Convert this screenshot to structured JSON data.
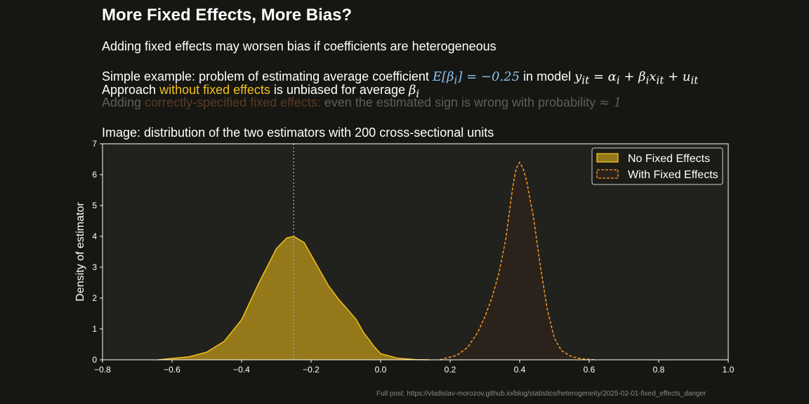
{
  "title": "More Fixed Effects, More Bias?",
  "subtitle": "Adding fixed effects may worsen bias if coefficients are heterogeneous",
  "line_example": {
    "prefix": "Simple example: problem of estimating average coefficient",
    "expected": "E[β",
    "expected_sub": "i",
    "expected_rest": "] = −0.25",
    "middle": "in model",
    "model": "y",
    "model_sub1": "it",
    "model_eq": " = α",
    "model_sub2": "i",
    "model_plus1": " + β",
    "model_sub3": "i",
    "model_x": "x",
    "model_sub4": "it",
    "model_plus2": " + u",
    "model_sub5": "it"
  },
  "line_no_fe": {
    "prefix": "Approach",
    "highlight": "without fixed effects",
    "suffix": "is unbiased for average",
    "beta": "β",
    "beta_sub": "i"
  },
  "line_fe": {
    "prefix": "Adding",
    "highlight": "correctly-specified fixed effects:",
    "suffix": "even the estimated sign is wrong with probability",
    "approx": "≈ 1"
  },
  "line_image": "Image: distribution of the two estimators with 200 cross-sectional units",
  "footer": "Full post: https://vladislav-morozov.github.io/blog/statistics/heterogeneity/2025-02-01-fixed_effects_danger",
  "chart_data": {
    "type": "area",
    "title": "",
    "xlabel": "",
    "ylabel": "Density of estimator",
    "xlim": [
      -0.8,
      1.0
    ],
    "ylim": [
      0,
      7
    ],
    "xticks": [
      -0.8,
      -0.6,
      -0.4,
      -0.2,
      0.0,
      0.2,
      0.4,
      0.6,
      0.8,
      1.0
    ],
    "xtick_labels": [
      "−0.8",
      "−0.6",
      "−0.4",
      "−0.2",
      "0.0",
      "0.2",
      "0.4",
      "0.6",
      "0.8",
      "1.0"
    ],
    "yticks": [
      0,
      1,
      2,
      3,
      4,
      5,
      6,
      7
    ],
    "ytick_labels": [
      "0",
      "1",
      "2",
      "3",
      "4",
      "5",
      "6",
      "7"
    ],
    "reference_line": {
      "x": -0.25,
      "style": "dotted",
      "color": "#7aa6c2"
    },
    "legend_position": "top-right",
    "grid": false,
    "series": [
      {
        "name": "No Fixed Effects",
        "line_style": "solid",
        "line_color": "#f2c21a",
        "fill_color": "#95781a",
        "x": [
          -0.64,
          -0.55,
          -0.5,
          -0.45,
          -0.4,
          -0.35,
          -0.3,
          -0.27,
          -0.25,
          -0.22,
          -0.2,
          -0.17,
          -0.15,
          -0.12,
          -0.1,
          -0.07,
          -0.05,
          -0.02,
          0.0,
          0.05,
          0.1,
          0.14
        ],
        "y": [
          0.0,
          0.1,
          0.25,
          0.6,
          1.3,
          2.5,
          3.6,
          3.95,
          4.0,
          3.8,
          3.4,
          2.8,
          2.4,
          1.95,
          1.7,
          1.3,
          0.9,
          0.45,
          0.2,
          0.05,
          0.01,
          0.0
        ]
      },
      {
        "name": "With Fixed Effects",
        "line_style": "dashed",
        "line_color": "#ff9a1a",
        "fill_color": "#2b221c",
        "x": [
          0.17,
          0.22,
          0.25,
          0.28,
          0.3,
          0.32,
          0.34,
          0.36,
          0.38,
          0.39,
          0.4,
          0.41,
          0.42,
          0.44,
          0.46,
          0.48,
          0.5,
          0.52,
          0.55,
          0.58,
          0.62
        ],
        "y": [
          0.0,
          0.15,
          0.4,
          0.9,
          1.4,
          2.0,
          2.8,
          3.9,
          5.6,
          6.2,
          6.4,
          6.2,
          5.8,
          4.6,
          3.0,
          1.6,
          0.7,
          0.3,
          0.1,
          0.03,
          0.0
        ]
      }
    ]
  },
  "colors": {
    "background": "#161613",
    "plot_background": "#21211e",
    "axis": "#ffffff"
  }
}
